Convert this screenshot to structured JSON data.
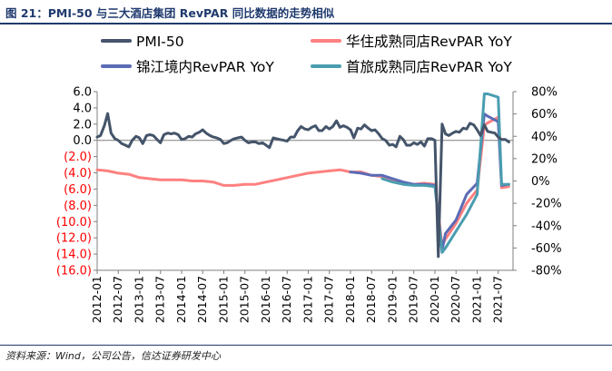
{
  "figure": {
    "title": "图 21：PMI-50 与三大酒店集团 RevPAR 同比数据的走势相似",
    "source": "资料来源：Wind，公司公告，信达证券研发中心"
  },
  "chart_data": {
    "type": "line",
    "title": "PMI-50 与三大酒店集团 RevPAR 同比数据的走势相似",
    "xlabel": "",
    "ylabel_left": "",
    "ylabel_right": "",
    "x_tick_labels": [
      "2012-01",
      "2012-07",
      "2013-01",
      "2013-07",
      "2014-01",
      "2014-07",
      "2015-01",
      "2015-07",
      "2016-01",
      "2016-07",
      "2017-01",
      "2017-07",
      "2018-01",
      "2018-07",
      "2019-01",
      "2019-07",
      "2020-01",
      "2020-07",
      "2021-01",
      "2021-07"
    ],
    "left_axis": {
      "ylim": [
        -16,
        6
      ],
      "ticks": [
        6,
        4,
        2,
        0,
        -2,
        -4,
        -6,
        -8,
        -10,
        -12,
        -14,
        -16
      ],
      "tick_labels": [
        "6.0",
        "4.0",
        "2.0",
        "0.0",
        "(2.0)",
        "(4.0)",
        "(6.0)",
        "(8.0)",
        "(10.0)",
        "(12.0)",
        "(14.0)",
        "(16.0)"
      ]
    },
    "right_axis": {
      "ylim": [
        -80,
        80
      ],
      "ticks": [
        80,
        60,
        40,
        20,
        0,
        -20,
        -40,
        -60,
        -80
      ],
      "tick_labels": [
        "80%",
        "60%",
        "40%",
        "20%",
        "0%",
        "-20%",
        "-40%",
        "-60%",
        "-80%"
      ]
    },
    "legend": [
      "PMI-50",
      "华住成熟同店RevPAR YoY",
      "锦江境内RevPAR YoY",
      "首旅成熟同店RevPAR YoY"
    ],
    "series": [
      {
        "name": "PMI-50",
        "axis": "left",
        "color": "#44546a",
        "points": [
          [
            2012.0,
            0.4
          ],
          [
            2012.08,
            0.6
          ],
          [
            2012.17,
            1.8
          ],
          [
            2012.25,
            3.3
          ],
          [
            2012.33,
            0.9
          ],
          [
            2012.42,
            0.2
          ],
          [
            2012.5,
            0.0
          ],
          [
            2012.58,
            -0.4
          ],
          [
            2012.67,
            -0.6
          ],
          [
            2012.75,
            -0.8
          ],
          [
            2012.83,
            0.0
          ],
          [
            2012.92,
            0.5
          ],
          [
            2013.0,
            0.3
          ],
          [
            2013.08,
            -0.4
          ],
          [
            2013.17,
            0.6
          ],
          [
            2013.25,
            0.7
          ],
          [
            2013.33,
            0.6
          ],
          [
            2013.42,
            0.1
          ],
          [
            2013.5,
            -0.3
          ],
          [
            2013.58,
            0.7
          ],
          [
            2013.67,
            0.9
          ],
          [
            2013.75,
            0.8
          ],
          [
            2013.83,
            0.9
          ],
          [
            2013.92,
            0.7
          ],
          [
            2014.0,
            0.1
          ],
          [
            2014.08,
            0.2
          ],
          [
            2014.17,
            0.5
          ],
          [
            2014.25,
            0.4
          ],
          [
            2014.33,
            0.8
          ],
          [
            2014.42,
            1.0
          ],
          [
            2014.5,
            1.3
          ],
          [
            2014.58,
            0.9
          ],
          [
            2014.67,
            0.6
          ],
          [
            2014.75,
            0.4
          ],
          [
            2014.83,
            0.3
          ],
          [
            2014.92,
            0.1
          ],
          [
            2015.0,
            -0.4
          ],
          [
            2015.08,
            -0.3
          ],
          [
            2015.17,
            0.0
          ],
          [
            2015.25,
            0.2
          ],
          [
            2015.33,
            0.3
          ],
          [
            2015.42,
            0.4
          ],
          [
            2015.5,
            0.0
          ],
          [
            2015.58,
            -0.3
          ],
          [
            2015.67,
            -0.2
          ],
          [
            2015.75,
            -0.2
          ],
          [
            2015.83,
            -0.4
          ],
          [
            2015.92,
            -0.3
          ],
          [
            2016.0,
            -0.6
          ],
          [
            2016.08,
            -0.9
          ],
          [
            2016.17,
            0.3
          ],
          [
            2016.25,
            0.2
          ],
          [
            2016.33,
            0.1
          ],
          [
            2016.42,
            0.0
          ],
          [
            2016.5,
            -0.1
          ],
          [
            2016.58,
            0.4
          ],
          [
            2016.67,
            0.4
          ],
          [
            2016.75,
            1.2
          ],
          [
            2016.83,
            1.7
          ],
          [
            2016.92,
            1.4
          ],
          [
            2017.0,
            1.3
          ],
          [
            2017.08,
            1.6
          ],
          [
            2017.17,
            1.8
          ],
          [
            2017.25,
            1.2
          ],
          [
            2017.33,
            1.2
          ],
          [
            2017.42,
            1.7
          ],
          [
            2017.5,
            1.4
          ],
          [
            2017.58,
            1.7
          ],
          [
            2017.67,
            2.4
          ],
          [
            2017.75,
            1.6
          ],
          [
            2017.83,
            1.8
          ],
          [
            2017.92,
            1.6
          ],
          [
            2018.0,
            1.3
          ],
          [
            2018.08,
            0.3
          ],
          [
            2018.17,
            1.5
          ],
          [
            2018.25,
            1.4
          ],
          [
            2018.33,
            1.9
          ],
          [
            2018.42,
            1.5
          ],
          [
            2018.5,
            1.2
          ],
          [
            2018.58,
            1.3
          ],
          [
            2018.67,
            0.8
          ],
          [
            2018.75,
            0.2
          ],
          [
            2018.83,
            0.0
          ],
          [
            2018.92,
            -0.6
          ],
          [
            2019.0,
            -0.5
          ],
          [
            2019.08,
            -0.8
          ],
          [
            2019.17,
            0.5
          ],
          [
            2019.25,
            0.1
          ],
          [
            2019.33,
            -0.6
          ],
          [
            2019.42,
            -0.6
          ],
          [
            2019.5,
            -0.3
          ],
          [
            2019.58,
            -0.5
          ],
          [
            2019.67,
            -0.2
          ],
          [
            2019.75,
            -0.7
          ],
          [
            2019.83,
            0.2
          ],
          [
            2019.92,
            0.2
          ],
          [
            2020.0,
            0.0
          ],
          [
            2020.08,
            -14.3
          ],
          [
            2020.17,
            2.0
          ],
          [
            2020.25,
            0.8
          ],
          [
            2020.33,
            0.6
          ],
          [
            2020.42,
            0.9
          ],
          [
            2020.5,
            1.1
          ],
          [
            2020.58,
            1.0
          ],
          [
            2020.67,
            1.5
          ],
          [
            2020.75,
            1.4
          ],
          [
            2020.83,
            2.1
          ],
          [
            2020.92,
            1.9
          ],
          [
            2021.0,
            1.3
          ],
          [
            2021.08,
            0.6
          ],
          [
            2021.17,
            1.9
          ],
          [
            2021.25,
            1.1
          ],
          [
            2021.33,
            1.0
          ],
          [
            2021.42,
            0.9
          ],
          [
            2021.5,
            0.4
          ],
          [
            2021.58,
            0.1
          ],
          [
            2021.67,
            0.1
          ],
          [
            2021.75,
            -0.2
          ]
        ]
      },
      {
        "name": "华住成熟同店RevPAR YoY",
        "axis": "right",
        "color": "#ff8080",
        "points": [
          [
            2012.0,
            10
          ],
          [
            2012.25,
            9
          ],
          [
            2012.5,
            7
          ],
          [
            2012.75,
            6
          ],
          [
            2013.0,
            3
          ],
          [
            2013.25,
            2
          ],
          [
            2013.5,
            1
          ],
          [
            2013.75,
            1
          ],
          [
            2014.0,
            1
          ],
          [
            2014.25,
            0
          ],
          [
            2014.5,
            0
          ],
          [
            2014.75,
            -1
          ],
          [
            2015.0,
            -4
          ],
          [
            2015.25,
            -4
          ],
          [
            2015.5,
            -3
          ],
          [
            2015.75,
            -3
          ],
          [
            2016.0,
            -1
          ],
          [
            2016.25,
            1
          ],
          [
            2016.5,
            3
          ],
          [
            2016.75,
            5
          ],
          [
            2017.0,
            7
          ],
          [
            2017.25,
            8
          ],
          [
            2017.5,
            9
          ],
          [
            2017.75,
            10
          ],
          [
            2018.0,
            8
          ],
          [
            2018.25,
            8
          ],
          [
            2018.5,
            5
          ],
          [
            2018.75,
            4
          ],
          [
            2019.0,
            1
          ],
          [
            2019.25,
            -2
          ],
          [
            2019.5,
            -3
          ],
          [
            2019.75,
            -2
          ],
          [
            2020.0,
            -3
          ],
          [
            2020.17,
            -58
          ],
          [
            2020.25,
            -52
          ],
          [
            2020.5,
            -38
          ],
          [
            2020.75,
            -20
          ],
          [
            2021.0,
            -8
          ],
          [
            2021.17,
            50
          ],
          [
            2021.25,
            52
          ],
          [
            2021.5,
            57
          ],
          [
            2021.58,
            -6
          ],
          [
            2021.75,
            -5
          ]
        ]
      },
      {
        "name": "锦江境内RevPAR YoY",
        "axis": "right",
        "color": "#5b6bb5",
        "points": [
          [
            2018.0,
            8
          ],
          [
            2018.25,
            7
          ],
          [
            2018.5,
            5
          ],
          [
            2018.75,
            5
          ],
          [
            2019.0,
            2
          ],
          [
            2019.25,
            -1
          ],
          [
            2019.5,
            -3
          ],
          [
            2019.75,
            -3
          ],
          [
            2020.0,
            -4
          ],
          [
            2020.17,
            -62
          ],
          [
            2020.25,
            -47
          ],
          [
            2020.5,
            -35
          ],
          [
            2020.75,
            -12
          ],
          [
            2021.0,
            -2
          ],
          [
            2021.17,
            60
          ],
          [
            2021.25,
            58
          ],
          [
            2021.5,
            53
          ],
          [
            2021.58,
            -4
          ],
          [
            2021.75,
            -3
          ]
        ]
      },
      {
        "name": "首旅成熟同店RevPAR YoY",
        "axis": "right",
        "color": "#4a9db0",
        "points": [
          [
            2018.75,
            2
          ],
          [
            2019.0,
            -1
          ],
          [
            2019.25,
            -3
          ],
          [
            2019.5,
            -4
          ],
          [
            2019.75,
            -4
          ],
          [
            2020.0,
            -5
          ],
          [
            2020.17,
            -64
          ],
          [
            2020.25,
            -60
          ],
          [
            2020.5,
            -45
          ],
          [
            2020.75,
            -30
          ],
          [
            2021.0,
            -12
          ],
          [
            2021.17,
            78
          ],
          [
            2021.25,
            78
          ],
          [
            2021.5,
            75
          ],
          [
            2021.58,
            -3
          ],
          [
            2021.75,
            -3
          ]
        ]
      }
    ]
  }
}
